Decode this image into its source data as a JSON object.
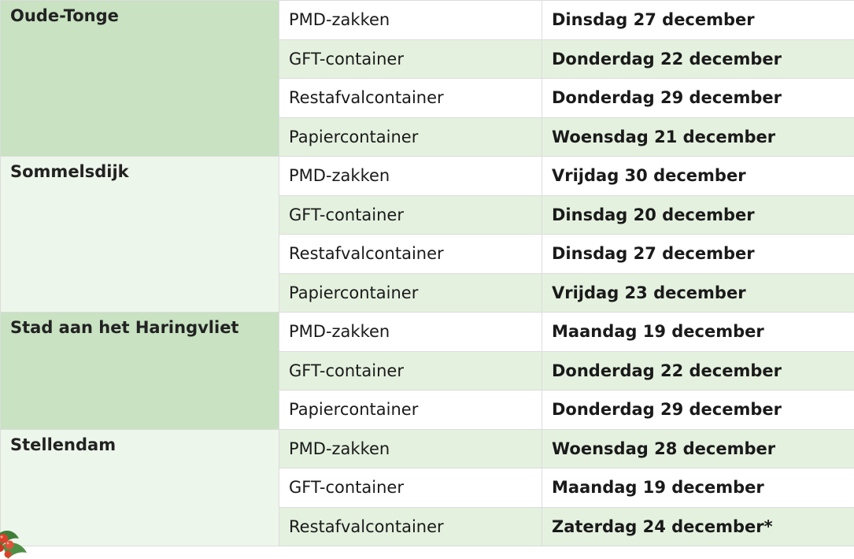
{
  "groups": [
    {
      "place": "Oude-Tonge",
      "rows": [
        {
          "waste": "PMD-zakken",
          "date": "Dinsdag 27 december"
        },
        {
          "waste": "GFT-container",
          "date": "Donderdag 22 december"
        },
        {
          "waste": "Restafvalcontainer",
          "date": "Donderdag 29 december"
        },
        {
          "waste": "Papiercontainer",
          "date": "Woensdag 21 december"
        }
      ]
    },
    {
      "place": "Sommelsdijk",
      "rows": [
        {
          "waste": "PMD-zakken",
          "date": "Vrijdag 30 december"
        },
        {
          "waste": "GFT-container",
          "date": "Dinsdag 20 december"
        },
        {
          "waste": "Restafvalcontainer",
          "date": "Dinsdag 27 december"
        },
        {
          "waste": "Papiercontainer",
          "date": "Vrijdag 23 december"
        }
      ]
    },
    {
      "place": "Stad aan het Haringvliet",
      "rows": [
        {
          "waste": "PMD-zakken",
          "date": "Maandag 19 december"
        },
        {
          "waste": "GFT-container",
          "date": "Donderdag 22 december"
        },
        {
          "waste": "Papiercontainer",
          "date": "Donderdag 29 december"
        }
      ]
    },
    {
      "place": "Stellendam",
      "rows": [
        {
          "waste": "PMD-zakken",
          "date": "Woensdag 28 december"
        },
        {
          "waste": "GFT-container",
          "date": "Maandag 19 december"
        },
        {
          "waste": "Restafvalcontainer",
          "date": "Zaterdag 24 december*"
        }
      ]
    }
  ],
  "decoration_icon": "holly-icon",
  "colors": {
    "place_dark": "#c8e2c2",
    "place_light": "#edf6ea",
    "row_shade": "#e4f1df",
    "row_plain": "#ffffff",
    "border": "#dcdcdc"
  }
}
